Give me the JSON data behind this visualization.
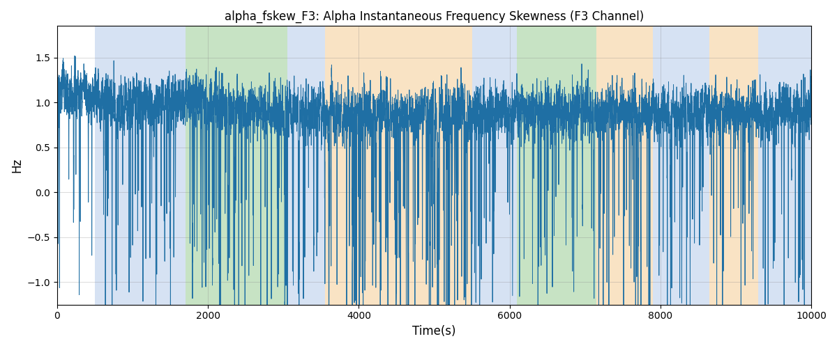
{
  "title": "alpha_fskew_F3: Alpha Instantaneous Frequency Skewness (F3 Channel)",
  "xlabel": "Time(s)",
  "ylabel": "Hz",
  "xlim": [
    0,
    10000
  ],
  "ylim": [
    -1.25,
    1.85
  ],
  "line_color": "#1f6fa4",
  "line_width": 0.7,
  "grid": true,
  "figsize": [
    12,
    5
  ],
  "dpi": 100,
  "regions": [
    {
      "start": 500,
      "end": 1700,
      "color": "#aec6e8",
      "alpha": 0.5
    },
    {
      "start": 1700,
      "end": 3050,
      "color": "#90c98a",
      "alpha": 0.5
    },
    {
      "start": 3050,
      "end": 3550,
      "color": "#aec6e8",
      "alpha": 0.5
    },
    {
      "start": 3550,
      "end": 5500,
      "color": "#f5c98a",
      "alpha": 0.5
    },
    {
      "start": 5500,
      "end": 6100,
      "color": "#aec6e8",
      "alpha": 0.5
    },
    {
      "start": 6100,
      "end": 7150,
      "color": "#90c98a",
      "alpha": 0.5
    },
    {
      "start": 7150,
      "end": 7900,
      "color": "#f5c98a",
      "alpha": 0.5
    },
    {
      "start": 7900,
      "end": 8650,
      "color": "#aec6e8",
      "alpha": 0.5
    },
    {
      "start": 8650,
      "end": 9300,
      "color": "#f5c98a",
      "alpha": 0.5
    },
    {
      "start": 9300,
      "end": 10000,
      "color": "#aec6e8",
      "alpha": 0.5
    }
  ]
}
